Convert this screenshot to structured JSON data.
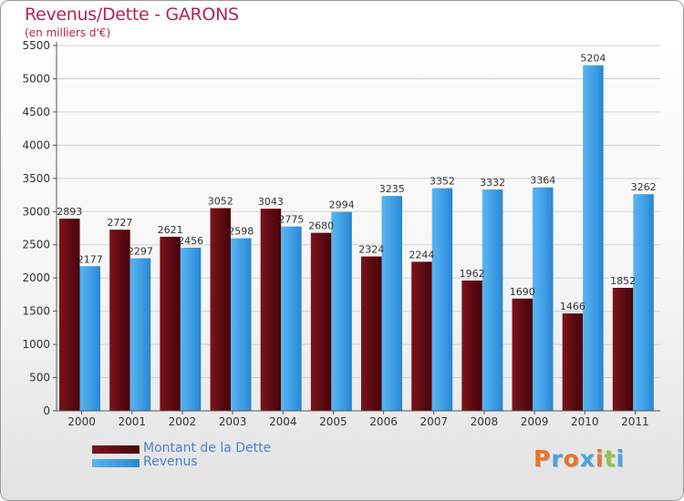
{
  "title": "Revenus/Dette - GARONS",
  "subtitle": "(en milliers d'€)",
  "logo_text": "Proxiti",
  "logo_colors": [
    "#e8742c",
    "#4aa3df",
    "#e8742c",
    "#4aa3df",
    "#e8742c",
    "#8dc63f",
    "#4aa3df"
  ],
  "colors": {
    "title": "#b3245a",
    "debt": "#6b0f17",
    "revenue": "#3e9ee6",
    "legend_text": "#4b7fd8"
  },
  "legend": [
    {
      "label": "Montant de la Dette",
      "color": "#6b0f17"
    },
    {
      "label": "Revenus",
      "color": "#3e9ee6"
    }
  ],
  "chart_data": {
    "type": "bar",
    "categories": [
      "2000",
      "2001",
      "2002",
      "2003",
      "2004",
      "2005",
      "2006",
      "2007",
      "2008",
      "2009",
      "2010",
      "2011"
    ],
    "series": [
      {
        "name": "Montant de la Dette",
        "color": "#6b0f17",
        "values": [
          2893,
          2727,
          2621,
          3052,
          3043,
          2680,
          2324,
          2244,
          1962,
          1690,
          1466,
          1852
        ],
        "labels": [
          "2893",
          "2727",
          "2621",
          "3052",
          "3043",
          "2680",
          "2324",
          "2244",
          "1962",
          "1690",
          "1466",
          "1852"
        ]
      },
      {
        "name": "Revenus",
        "color": "#3e9ee6",
        "values": [
          2177,
          2297,
          2456,
          2598,
          2775,
          2994,
          3235,
          3352,
          3332,
          3364,
          5204,
          3262
        ],
        "labels": [
          "2177",
          "2297",
          "2456",
          "2598",
          "2775",
          "2994",
          "3235",
          "3352",
          "3332",
          "3364",
          "5204",
          "3262"
        ]
      }
    ],
    "ylim": [
      0,
      5500
    ],
    "yticks": [
      0,
      500,
      1000,
      1500,
      2000,
      2500,
      3000,
      3500,
      4000,
      4500,
      5000,
      5500
    ],
    "ytick_labels": [
      "0",
      "500",
      "1000",
      "1500",
      "2000",
      "2500",
      "3000",
      "3500",
      "4000",
      "4500",
      "5000",
      "5500"
    ],
    "xlabel": "",
    "ylabel": "",
    "grid": true,
    "legend_position": "bottom-left"
  }
}
